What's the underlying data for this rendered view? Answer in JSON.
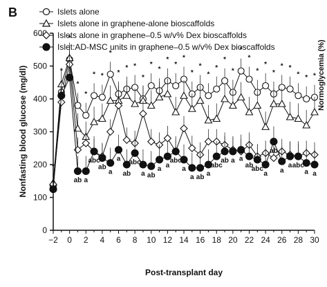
{
  "chart_data": {
    "type": "line",
    "panel_label": "B",
    "title": "",
    "xlabel": "Post-transplant day",
    "ylabel": "Nonfasting blood glucose (mg/dl)",
    "right_axis_label_fragment": "Normoglycemia (%)",
    "xlim": [
      -2,
      30
    ],
    "ylim": [
      0,
      600
    ],
    "x_ticks": [
      -2,
      0,
      2,
      4,
      6,
      8,
      10,
      12,
      14,
      16,
      18,
      20,
      22,
      24,
      26,
      28,
      30
    ],
    "y_ticks": [
      0,
      100,
      200,
      300,
      400,
      500,
      600
    ],
    "grid": false,
    "legend_position": "top-left",
    "x": [
      -2,
      -1,
      0,
      1,
      2,
      3,
      4,
      5,
      6,
      7,
      8,
      9,
      10,
      11,
      12,
      13,
      14,
      15,
      16,
      17,
      18,
      19,
      20,
      21,
      22,
      23,
      24,
      25,
      26,
      27,
      28,
      29,
      30
    ],
    "series": [
      {
        "name": "Islets alone",
        "marker": "circle-open",
        "values": [
          130,
          420,
          520,
          380,
          350,
          410,
          405,
          475,
          415,
          430,
          435,
          400,
          440,
          425,
          455,
          440,
          460,
          415,
          435,
          410,
          430,
          455,
          420,
          485,
          460,
          420,
          440,
          415,
          435,
          430,
          410,
          400,
          405
        ]
      },
      {
        "name": "Islets alone in graphene-alone bioscaffolds",
        "marker": "triangle-open",
        "values": [
          145,
          445,
          525,
          310,
          285,
          330,
          340,
          395,
          395,
          410,
          385,
          395,
          380,
          405,
          415,
          360,
          410,
          370,
          395,
          335,
          340,
          400,
          380,
          405,
          360,
          380,
          315,
          385,
          385,
          345,
          340,
          320,
          360
        ]
      },
      {
        "name": "Islets alone in graphene–0.5 w/v% Dex bioscaffolds",
        "marker": "diamond-open",
        "values": [
          140,
          390,
          505,
          245,
          265,
          240,
          225,
          300,
          380,
          275,
          265,
          355,
          270,
          260,
          280,
          240,
          310,
          250,
          230,
          270,
          270,
          260,
          245,
          240,
          260,
          225,
          235,
          220,
          240,
          230,
          225,
          235,
          230
        ]
      },
      {
        "name": "Islet:AD-MSC units in graphene–0.5 w/v% Dex bioscaffolds",
        "marker": "circle-filled",
        "values": [
          125,
          410,
          465,
          180,
          180,
          240,
          220,
          205,
          245,
          200,
          235,
          200,
          195,
          215,
          225,
          240,
          215,
          190,
          190,
          200,
          225,
          240,
          240,
          245,
          225,
          215,
          200,
          270,
          210,
          225,
          225,
          205,
          200
        ]
      }
    ],
    "annotation_labels": [
      "*",
      "a",
      "b",
      "c",
      "ab",
      "abc"
    ]
  }
}
